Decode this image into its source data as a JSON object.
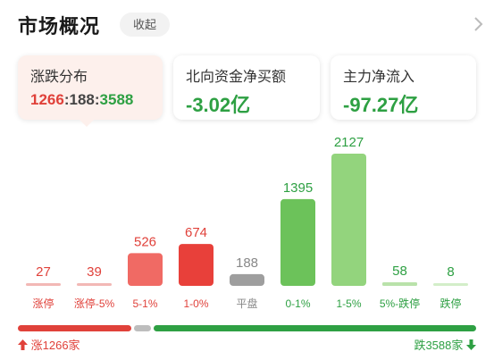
{
  "header": {
    "title": "市场概况",
    "collapse_label": "收起",
    "chevron_icon": "chevron-right-icon"
  },
  "cards": {
    "distribution": {
      "label": "涨跌分布",
      "up": "1266",
      "flat": "188",
      "down": "3588",
      "sep": ":"
    },
    "northbound": {
      "label": "北向资金净买额",
      "value": "-3.02亿"
    },
    "main_flow": {
      "label": "主力净流入",
      "value": "-97.27亿"
    }
  },
  "chart_data": {
    "type": "bar",
    "categories": [
      "涨停",
      "涨停-5%",
      "5-1%",
      "1-0%",
      "平盘",
      "0-1%",
      "1-5%",
      "5%-跌停",
      "跌停"
    ],
    "values": [
      27,
      39,
      526,
      674,
      188,
      1395,
      2127,
      58,
      8
    ],
    "colors": [
      "#f2b8b5",
      "#f2b8b5",
      "#f06a64",
      "#e8403a",
      "#9e9e9e",
      "#6cc25a",
      "#93d47d",
      "#b9e2aa",
      "#d3eec9"
    ],
    "label_colors": [
      "#e0413a",
      "#e0413a",
      "#e0413a",
      "#e0413a",
      "#888888",
      "#2ea043",
      "#2ea043",
      "#2ea043",
      "#2ea043"
    ]
  },
  "summary": {
    "up_label": "涨1266家",
    "down_label": "跌3588家",
    "up_icon": "arrow-up-icon",
    "down_icon": "arrow-down-icon",
    "up_count": 1266,
    "flat_count": 188,
    "down_count": 3588,
    "up_color": "#e0413a",
    "flat_color": "#bdbdbd",
    "down_color": "#2ea043"
  }
}
